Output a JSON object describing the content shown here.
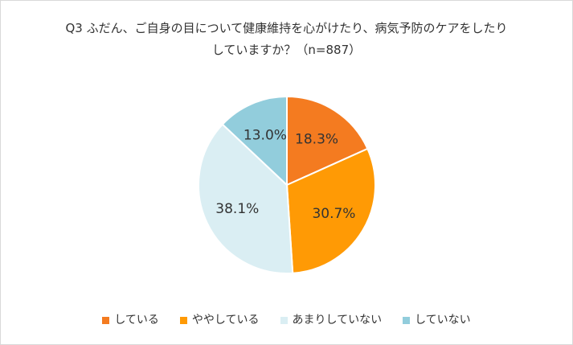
{
  "chart_data": {
    "type": "pie",
    "title": [
      "Q3 ふだん、ご自身の目について健康維持を心がけたり、病気予防のケアをしたり",
      "していますか？（n=887）"
    ],
    "categories": [
      "している",
      "ややしている",
      "あまりしていない",
      "していない"
    ],
    "values": [
      18.3,
      30.7,
      38.1,
      13.0
    ],
    "labels": [
      "18.3%",
      "30.7%",
      "38.1%",
      "13.0%"
    ],
    "colors": [
      "#f47b20",
      "#ff9a05",
      "#daeef3",
      "#92cddc"
    ],
    "start": "12 o'clock, clockwise",
    "legend": "bottom"
  }
}
